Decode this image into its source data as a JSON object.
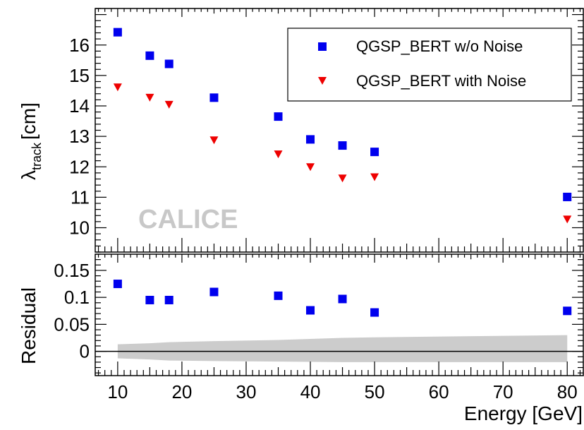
{
  "chart_data": [
    {
      "type": "scatter",
      "panel": "top",
      "xlabel": "Energy [GeV]",
      "ylabel_main": "λ",
      "ylabel_sub": "track",
      "ylabel_unit": "[cm]",
      "xlim": [
        6.5,
        82.5
      ],
      "ylim": [
        9.2,
        17.2
      ],
      "yticks": [
        10,
        11,
        12,
        13,
        14,
        15,
        16
      ],
      "watermark": "CALICE",
      "legend_position": "top-right",
      "series": [
        {
          "name": "QGSP_BERT w/o Noise",
          "marker": "square",
          "color": "#0000ee",
          "x": [
            10,
            15,
            18,
            25,
            35,
            40,
            45,
            50,
            80
          ],
          "y": [
            16.42,
            15.65,
            15.38,
            14.27,
            13.65,
            12.9,
            12.7,
            12.49,
            11.01
          ],
          "err": [
            0.08,
            0.06,
            0.06,
            0.04,
            0.04,
            0.04,
            0.04,
            0.04,
            0.04
          ]
        },
        {
          "name": "QGSP_BERT with Noise",
          "marker": "triangle-down",
          "color": "#ee0000",
          "x": [
            10,
            15,
            18,
            25,
            35,
            40,
            45,
            50,
            80
          ],
          "y": [
            14.62,
            14.28,
            14.05,
            12.88,
            12.42,
            12.0,
            11.63,
            11.67,
            10.28
          ],
          "err": [
            0.1,
            0.1,
            0.1,
            0.04,
            0.04,
            0.04,
            0.04,
            0.04,
            0.04
          ]
        }
      ]
    },
    {
      "type": "scatter",
      "panel": "bottom",
      "xlabel": "Energy [GeV]",
      "ylabel": "Residual",
      "xlim": [
        6.5,
        82.5
      ],
      "ylim": [
        -0.045,
        0.18
      ],
      "xticks": [
        10,
        20,
        30,
        40,
        50,
        60,
        70,
        80
      ],
      "yticks": [
        0,
        0.05,
        0.1,
        0.15
      ],
      "ytick_labels": [
        "0",
        "0.05",
        "0.1",
        "0.15"
      ],
      "series": [
        {
          "marker": "square",
          "color": "#0000ee",
          "x": [
            10,
            15,
            18,
            25,
            35,
            40,
            45,
            50,
            80
          ],
          "y": [
            0.125,
            0.095,
            0.095,
            0.11,
            0.103,
            0.076,
            0.097,
            0.072,
            0.075
          ]
        }
      ],
      "band": {
        "color": "#cccccc",
        "x": [
          10,
          15,
          18,
          25,
          35,
          45,
          50,
          80
        ],
        "upper": [
          0.013,
          0.015,
          0.017,
          0.019,
          0.021,
          0.025,
          0.026,
          0.03
        ],
        "lower": [
          -0.013,
          -0.015,
          -0.017,
          -0.018,
          -0.019,
          -0.02,
          -0.02,
          -0.02
        ]
      }
    }
  ]
}
